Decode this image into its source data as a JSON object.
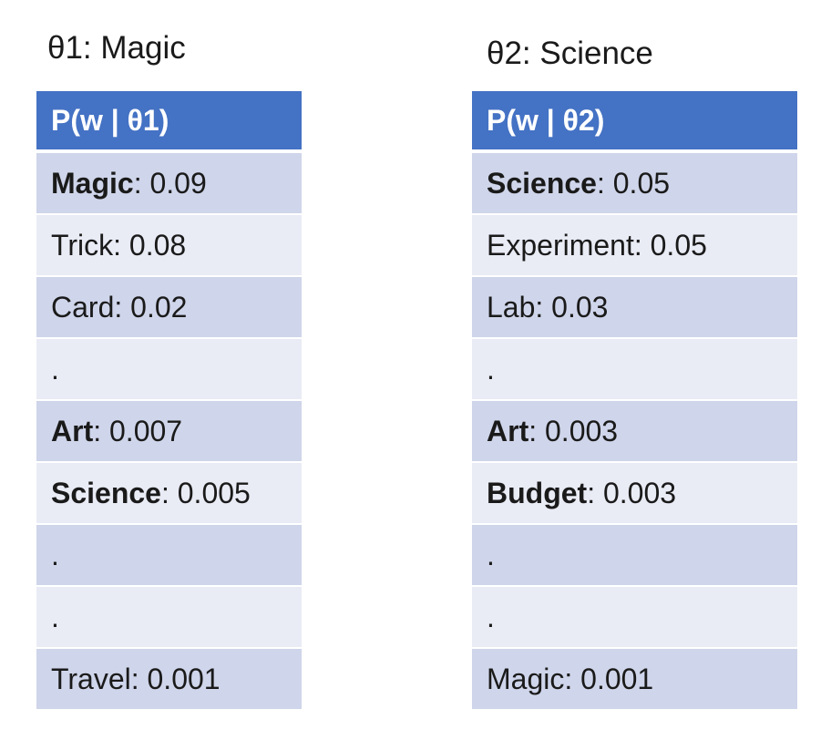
{
  "topics": [
    {
      "title": "θ1: Magic",
      "header": "P(w | θ1)",
      "rows": [
        {
          "term": "Magic",
          "value": ": 0.09",
          "bold": true
        },
        {
          "term": "Trick",
          "value": ": 0.08",
          "bold": false
        },
        {
          "term": "Card",
          "value": ": 0.02",
          "bold": false
        },
        {
          "term": ".",
          "value": "",
          "bold": false
        },
        {
          "term": "Art",
          "value": ": 0.007",
          "bold": true
        },
        {
          "term": "Science",
          "value": ": 0.005",
          "bold": true
        },
        {
          "term": ".",
          "value": "",
          "bold": false
        },
        {
          "term": ".",
          "value": "",
          "bold": false
        },
        {
          "term": "Travel",
          "value": ": 0.001",
          "bold": false
        }
      ]
    },
    {
      "title": "θ2: Science",
      "header": "P(w | θ2)",
      "rows": [
        {
          "term": "Science",
          "value": ": 0.05",
          "bold": true
        },
        {
          "term": "Experiment",
          "value": ": 0.05",
          "bold": false
        },
        {
          "term": "Lab",
          "value": ": 0.03",
          "bold": false
        },
        {
          "term": ".",
          "value": "",
          "bold": false
        },
        {
          "term": "Art",
          "value": ": 0.003",
          "bold": true
        },
        {
          "term": "Budget",
          "value": ": 0.003",
          "bold": true
        },
        {
          "term": ".",
          "value": "",
          "bold": false
        },
        {
          "term": ".",
          "value": "",
          "bold": false
        },
        {
          "term": "Magic",
          "value": ": 0.001",
          "bold": false
        }
      ]
    }
  ],
  "colors": {
    "header_bg": "#4472c4",
    "row_dark": "#cfd5ea",
    "row_light": "#e9ebf5"
  }
}
